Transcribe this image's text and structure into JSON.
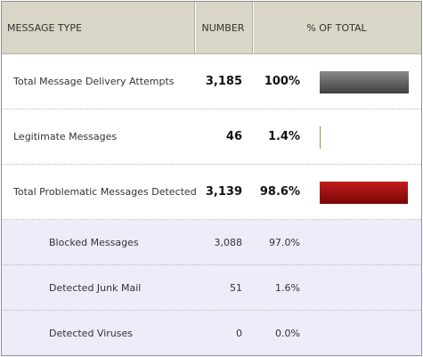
{
  "headers": {
    "message_type": "MESSAGE TYPE",
    "number": "NUMBER",
    "percent_of_total": "% OF TOTAL"
  },
  "rows": [
    {
      "label": "Total Message Delivery Attempts",
      "number": "3,185",
      "percent": "100%",
      "bar_fraction": 1.0,
      "bar_color": "gray"
    },
    {
      "label": "Legitimate Messages",
      "number": "46",
      "percent": "1.4%",
      "bar_fraction": 0.014,
      "bar_color": "green"
    },
    {
      "label": "Total Problematic Messages Detected",
      "number": "3,139",
      "percent": "98.6%",
      "bar_fraction": 0.986,
      "bar_color": "red"
    },
    {
      "label": "Blocked Messages",
      "number": "3,088",
      "percent": "97.0%"
    },
    {
      "label": "Detected Junk Mail",
      "number": "51",
      "percent": "1.6%"
    },
    {
      "label": "Detected Viruses",
      "number": "0",
      "percent": "0.0%"
    }
  ],
  "colors": {
    "header_bg": "#d9d5c7",
    "sub_row_bg": "#ecedf9",
    "bar_gray": "#5a5a5a",
    "bar_green": "#8a9a4a",
    "bar_red": "#a41010"
  }
}
